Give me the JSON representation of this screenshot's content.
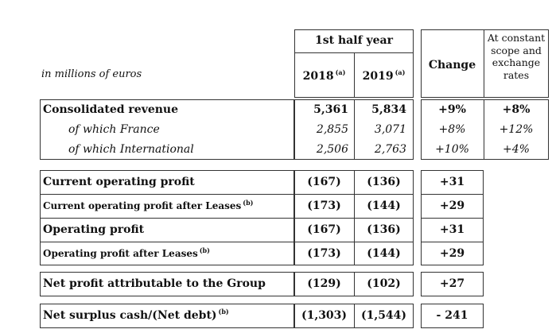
{
  "header": {
    "units_label": "in millions of euros",
    "period_label": "1st half year",
    "year_2018": "2018",
    "year_2018_note": "(a)",
    "year_2019": "2019",
    "year_2019_note": "(a)",
    "change_label": "Change",
    "constant_label": "At constant scope and exchange rates"
  },
  "revenue_rows": [
    {
      "label": "Consolidated revenue",
      "v2018": "5,361",
      "v2019": "5,834",
      "change": "+9%",
      "constant": "+8%"
    },
    {
      "label": "of which France",
      "v2018": "2,855",
      "v2019": "3,071",
      "change": "+8%",
      "constant": "+12%"
    },
    {
      "label": "of which International",
      "v2018": "2,506",
      "v2019": "2,763",
      "change": "+10%",
      "constant": "+4%"
    }
  ],
  "profit_rows": [
    {
      "label": "Current operating profit",
      "note": "",
      "v2018": "(167)",
      "v2019": "(136)",
      "change": "+31"
    },
    {
      "label": "Current operating profit after Leases",
      "note": "(b)",
      "v2018": "(173)",
      "v2019": "(144)",
      "change": "+29"
    },
    {
      "label": "Operating profit",
      "note": "",
      "v2018": "(167)",
      "v2019": "(136)",
      "change": "+31"
    },
    {
      "label": "Operating profit after Leases",
      "note": "(b)",
      "v2018": "(173)",
      "v2019": "(144)",
      "change": "+29"
    }
  ],
  "net_profit_row": {
    "label": "Net profit attributable to the Group",
    "v2018": "(129)",
    "v2019": "(102)",
    "change": "+27"
  },
  "cash_row": {
    "label": "Net surplus cash/(Net debt)",
    "note": "(b)",
    "v2018": "(1,303)",
    "v2019": "(1,544)",
    "change": "- 241"
  }
}
